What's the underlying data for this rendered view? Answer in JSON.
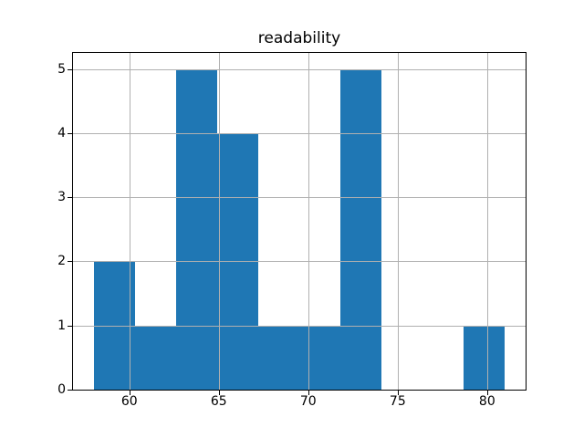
{
  "chart_data": {
    "type": "histogram",
    "title": "readability",
    "xlabel": "",
    "ylabel": "",
    "bin_edges": [
      58.0,
      60.3,
      62.6,
      64.9,
      67.2,
      69.5,
      71.8,
      74.1,
      76.4,
      78.7,
      81.0
    ],
    "counts": [
      2,
      1,
      5,
      4,
      1,
      1,
      5,
      0,
      0,
      1
    ],
    "xlim": [
      56.85,
      82.15
    ],
    "ylim": [
      0,
      5.25
    ],
    "x_tick_values": [
      60,
      65,
      70,
      75,
      80
    ],
    "x_tick_labels": [
      "60",
      "65",
      "70",
      "75",
      "80"
    ],
    "y_tick_values": [
      0,
      1,
      2,
      3,
      4,
      5
    ],
    "y_tick_labels": [
      "0",
      "1",
      "2",
      "3",
      "4",
      "5"
    ],
    "grid": true,
    "grid_above_bars": true,
    "legend": "none",
    "colors": {
      "bar": "#1f77b4",
      "grid": "#b0b0b0",
      "spine": "#000000",
      "background": "#ffffff",
      "text": "#000000"
    }
  }
}
